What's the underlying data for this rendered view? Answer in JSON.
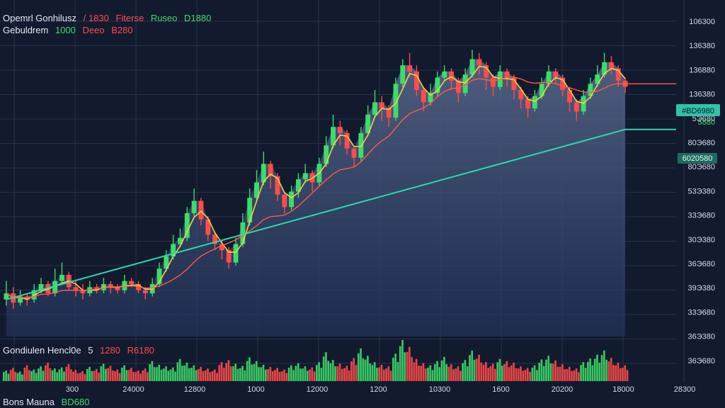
{
  "header": {
    "line1": {
      "label": "Opemrl Gonhilusz",
      "values": [
        {
          "text": "/ 1830",
          "color": "red"
        },
        {
          "text": "Fiterse",
          "color": "red"
        },
        {
          "text": "Ruseo",
          "color": "green"
        },
        {
          "text": "D1880",
          "color": "green"
        }
      ]
    },
    "line2": {
      "label": "Gebuldrem",
      "values": [
        {
          "text": "1000",
          "color": "green"
        },
        {
          "text": "Deeo",
          "color": "red"
        },
        {
          "text": "B280",
          "color": "red"
        }
      ]
    },
    "volume": {
      "label": "Gondiulen Hencl0e",
      "values": [
        {
          "text": "5",
          "color": "white"
        },
        {
          "text": "1280",
          "color": "red"
        },
        {
          "text": "R6180",
          "color": "red"
        }
      ]
    },
    "footer": {
      "label": "Bons Mauna",
      "values": [
        {
          "text": "BD680",
          "color": "green"
        }
      ]
    }
  },
  "price_tags": {
    "current": "#BD6980",
    "current_sub": "5880",
    "ma": "6020580"
  },
  "colors": {
    "background": "#121a2e",
    "up": "#3ddc6a",
    "down": "#ff4b4b",
    "ma_fast": "#f0d24a",
    "ma_mid": "#ff5a4a",
    "ma_slow": "#2fd6b0",
    "area": "#5a6a8c"
  },
  "chart_data": {
    "type": "candlestick",
    "y_ticks": [
      "106300",
      "136380",
      "136880",
      "136380",
      "5Э680",
      "80Э680",
      "80Э680",
      "53Э380",
      "33Э680",
      "30Э380",
      "36Э680",
      "39Э380",
      "33Э680",
      "36Э380",
      "36Э680"
    ],
    "x_ticks": [
      "300",
      "24000",
      "12800",
      "1000",
      "12000",
      "1200",
      "10300",
      "1600",
      "20200",
      "18000",
      "28300"
    ],
    "ylim": [
      0,
      100
    ],
    "candles": [
      [
        12,
        14,
        18,
        10
      ],
      [
        14,
        11,
        16,
        9
      ],
      [
        11,
        13,
        15,
        10
      ],
      [
        13,
        12,
        14,
        10
      ],
      [
        12,
        15,
        17,
        11
      ],
      [
        15,
        17,
        19,
        14
      ],
      [
        17,
        14,
        18,
        13
      ],
      [
        14,
        18,
        22,
        13
      ],
      [
        18,
        20,
        24,
        17
      ],
      [
        20,
        16,
        21,
        15
      ],
      [
        16,
        15,
        18,
        13
      ],
      [
        15,
        14,
        17,
        12
      ],
      [
        14,
        16,
        18,
        13
      ],
      [
        16,
        15,
        17,
        14
      ],
      [
        15,
        17,
        19,
        14
      ],
      [
        17,
        16,
        18,
        14
      ],
      [
        16,
        15,
        17,
        14
      ],
      [
        15,
        18,
        20,
        14
      ],
      [
        18,
        17,
        19,
        16
      ],
      [
        17,
        15,
        18,
        14
      ],
      [
        15,
        14,
        16,
        12
      ],
      [
        14,
        17,
        19,
        13
      ],
      [
        17,
        22,
        24,
        16
      ],
      [
        22,
        26,
        28,
        21
      ],
      [
        26,
        30,
        33,
        25
      ],
      [
        30,
        32,
        35,
        29
      ],
      [
        32,
        40,
        42,
        31
      ],
      [
        40,
        44,
        48,
        39
      ],
      [
        44,
        38,
        45,
        36
      ],
      [
        38,
        33,
        39,
        31
      ],
      [
        33,
        30,
        34,
        28
      ],
      [
        30,
        28,
        31,
        25
      ],
      [
        28,
        24,
        29,
        22
      ],
      [
        24,
        30,
        32,
        23
      ],
      [
        30,
        37,
        40,
        29
      ],
      [
        37,
        45,
        48,
        36
      ],
      [
        45,
        50,
        54,
        44
      ],
      [
        50,
        56,
        60,
        49
      ],
      [
        56,
        52,
        57,
        48
      ],
      [
        52,
        46,
        53,
        44
      ],
      [
        46,
        42,
        47,
        40
      ],
      [
        42,
        47,
        49,
        41
      ],
      [
        47,
        51,
        53,
        45
      ],
      [
        51,
        53,
        56,
        50
      ],
      [
        53,
        50,
        54,
        47
      ],
      [
        50,
        56,
        58,
        49
      ],
      [
        56,
        62,
        65,
        55
      ],
      [
        62,
        68,
        72,
        61
      ],
      [
        68,
        66,
        70,
        62
      ],
      [
        66,
        61,
        67,
        59
      ],
      [
        61,
        58,
        62,
        55
      ],
      [
        58,
        66,
        68,
        57
      ],
      [
        66,
        72,
        75,
        65
      ],
      [
        72,
        76,
        80,
        71
      ],
      [
        76,
        74,
        78,
        70
      ],
      [
        74,
        71,
        75,
        68
      ],
      [
        71,
        82,
        84,
        70
      ],
      [
        82,
        88,
        90,
        81
      ],
      [
        88,
        86,
        92,
        84
      ],
      [
        86,
        80,
        88,
        78
      ],
      [
        80,
        76,
        81,
        73
      ],
      [
        76,
        79,
        82,
        75
      ],
      [
        79,
        84,
        86,
        78
      ],
      [
        84,
        86,
        88,
        83
      ],
      [
        86,
        83,
        87,
        80
      ],
      [
        83,
        79,
        84,
        76
      ],
      [
        79,
        85,
        87,
        78
      ],
      [
        85,
        90,
        93,
        84
      ],
      [
        90,
        88,
        92,
        85
      ],
      [
        88,
        84,
        89,
        80
      ],
      [
        84,
        81,
        85,
        78
      ],
      [
        81,
        86,
        88,
        80
      ],
      [
        86,
        84,
        87,
        81
      ],
      [
        84,
        80,
        85,
        77
      ],
      [
        80,
        77,
        81,
        74
      ],
      [
        77,
        74,
        78,
        71
      ],
      [
        74,
        78,
        80,
        73
      ],
      [
        78,
        82,
        84,
        77
      ],
      [
        82,
        86,
        88,
        81
      ],
      [
        86,
        84,
        87,
        82
      ],
      [
        84,
        80,
        85,
        78
      ],
      [
        80,
        76,
        81,
        73
      ],
      [
        76,
        73,
        77,
        70
      ],
      [
        73,
        78,
        80,
        72
      ],
      [
        78,
        82,
        84,
        77
      ],
      [
        82,
        85,
        88,
        81
      ],
      [
        85,
        89,
        92,
        84
      ],
      [
        89,
        87,
        91,
        85
      ],
      [
        87,
        83,
        88,
        81
      ],
      [
        83,
        81,
        84,
        79
      ]
    ],
    "volume": [
      20,
      25,
      18,
      30,
      22,
      28,
      35,
      24,
      26,
      32,
      21,
      19,
      27,
      23,
      33,
      29,
      22,
      30,
      25,
      20,
      24,
      38,
      31,
      28,
      26,
      42,
      35,
      30,
      27,
      24,
      22,
      36,
      40,
      33,
      29,
      45,
      38,
      31,
      27,
      25,
      22,
      30,
      34,
      28,
      26,
      36,
      55,
      40,
      33,
      29,
      44,
      62,
      48,
      36,
      31,
      28,
      52,
      78,
      65,
      42,
      34,
      30,
      38,
      46,
      32,
      28,
      40,
      58,
      50,
      36,
      33,
      42,
      38,
      35,
      28,
      25,
      30,
      41,
      48,
      39,
      32,
      27,
      24,
      36,
      43,
      50,
      58,
      44,
      35,
      30
    ]
  }
}
